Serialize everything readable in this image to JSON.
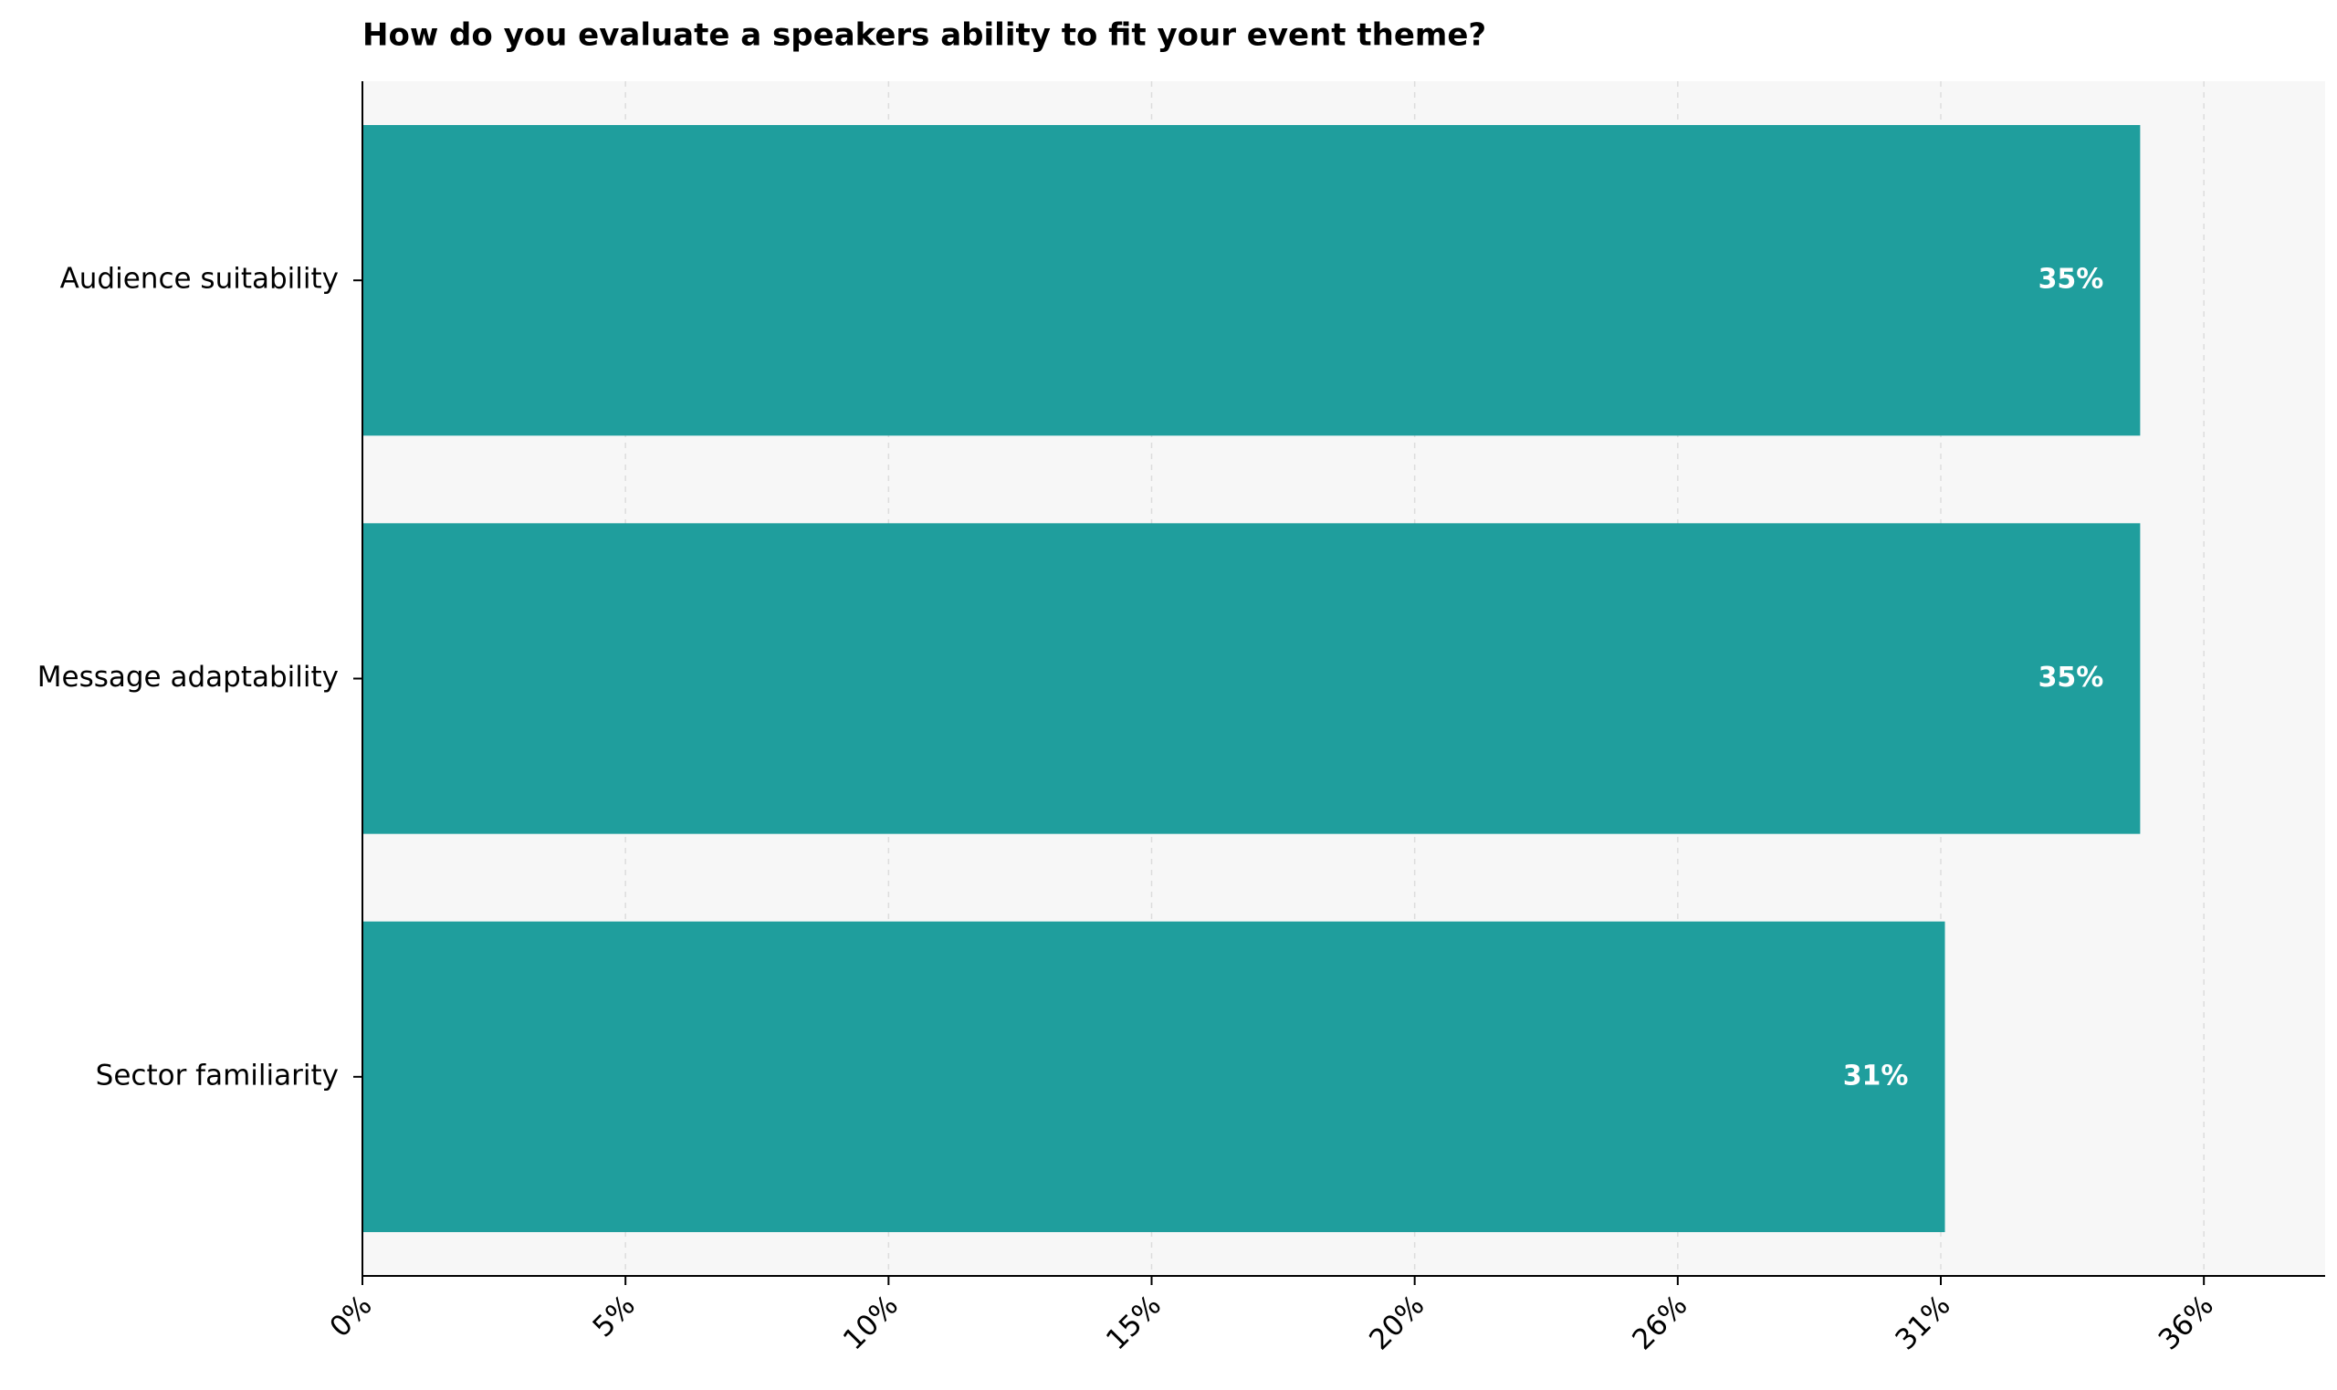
{
  "chart_data": {
    "type": "barh",
    "title": "How do you evaluate a speakers ability to fit your event theme?",
    "categories": [
      "Audience suitability",
      "Message adaptability",
      "Sector familiarity"
    ],
    "values": [
      34.6,
      34.6,
      30.8
    ],
    "value_labels": [
      "35%",
      "35%",
      "31%"
    ],
    "color": "#1f9e9d",
    "xlim": [
      0,
      38.2
    ],
    "xticks": [
      {
        "value": 0,
        "label": "0%"
      },
      {
        "value": 5.12,
        "label": "5%"
      },
      {
        "value": 10.24,
        "label": "10%"
      },
      {
        "value": 15.36,
        "label": "15%"
      },
      {
        "value": 20.48,
        "label": "20%"
      },
      {
        "value": 25.6,
        "label": "26%"
      },
      {
        "value": 30.72,
        "label": "31%"
      },
      {
        "value": 35.84,
        "label": "36%"
      }
    ],
    "grid": true
  }
}
